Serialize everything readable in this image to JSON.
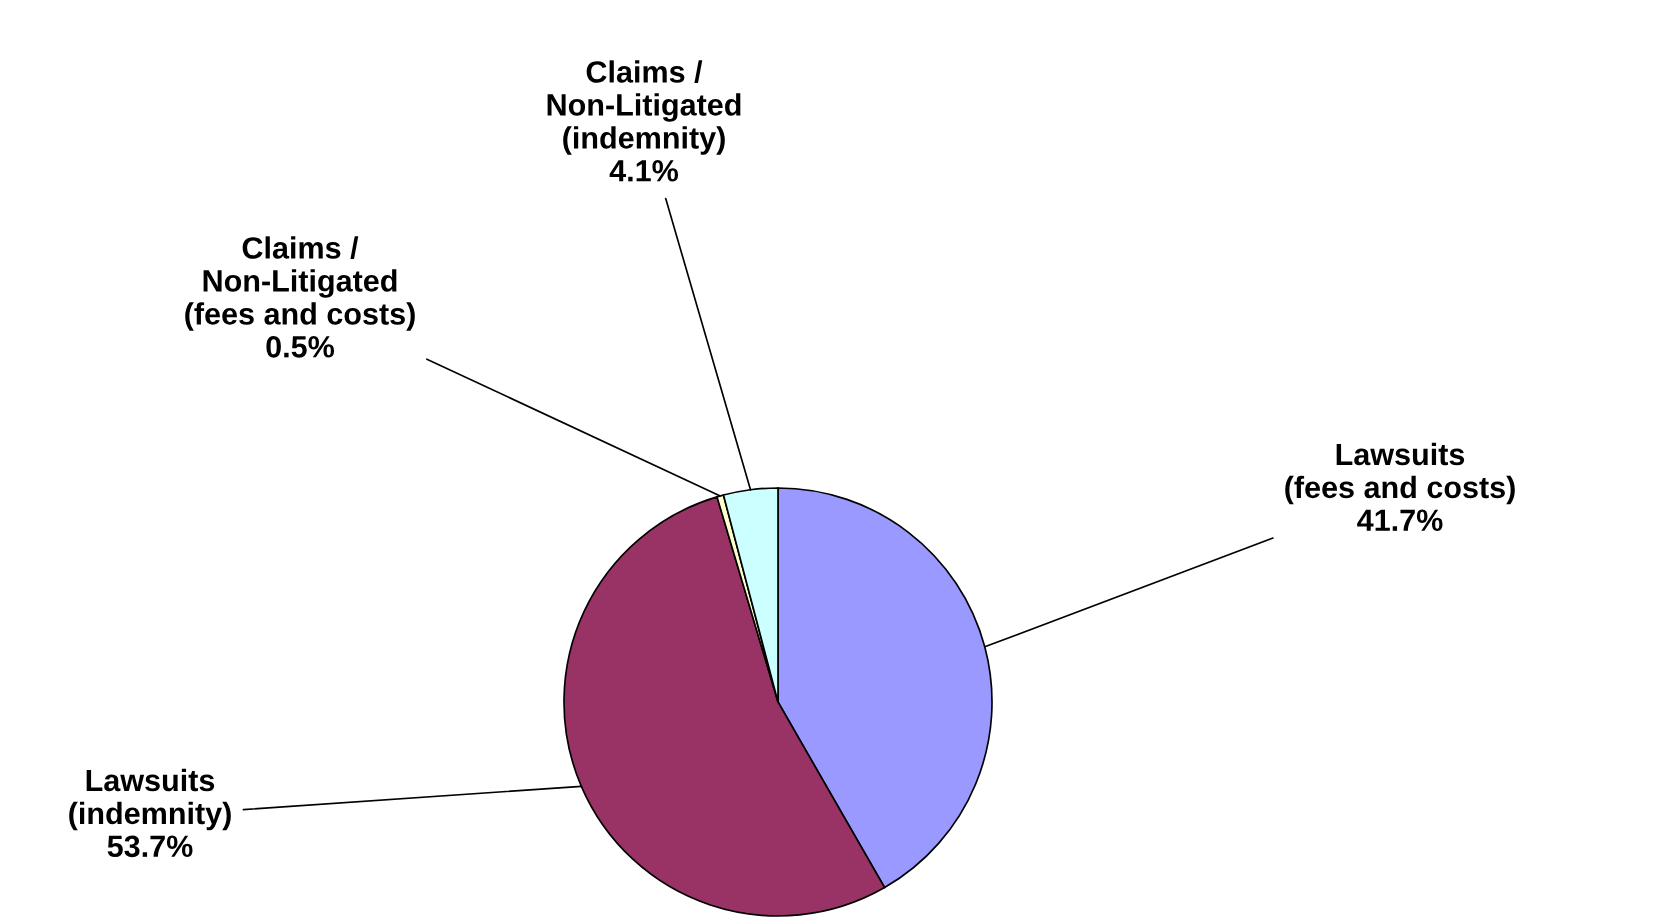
{
  "chart_data": {
    "type": "pie",
    "categories": [
      "Lawsuits\n(fees and costs)",
      "Lawsuits\n(indemnity)",
      "Claims /\nNon-Litigated\n(fees and costs)",
      "Claims /\nNon-Litigated\n(indemnity)"
    ],
    "values": [
      41.7,
      53.7,
      0.5,
      4.1
    ],
    "value_labels": [
      "41.7%",
      "53.7%",
      "0.5%",
      "4.1%"
    ],
    "colors": [
      "#9999ff",
      "#993366",
      "#ffffcc",
      "#ccffff"
    ]
  }
}
